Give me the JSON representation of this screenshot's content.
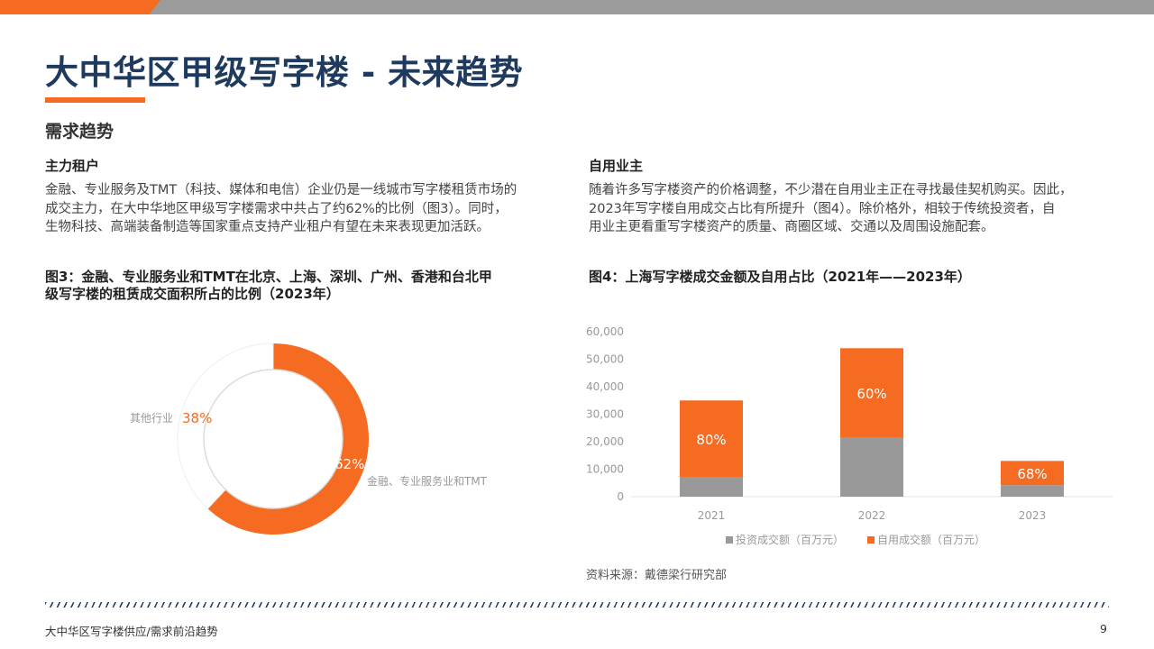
{
  "page": {
    "title": "大中华区甲级写字楼 - 未来趋势",
    "section_title": "需求趋势",
    "footer": "大中华区写字楼供应/需求前沿趋势",
    "page_number": "9",
    "source": "资料来源：戴德梁行研究部"
  },
  "left": {
    "heading": "主力租户",
    "lines": [
      "金融、专业服务及TMT（科技、媒体和电信）企业仍是一线城市写字楼租赁市场的",
      "成交主力，在大中华地区甲级写字楼需求中共占了约62%的比例（图3）。同时，",
      "生物科技、高端装备制造等国家重点支持产业租户有望在未来表现更加活跃。"
    ],
    "figure_title_lines": [
      "图3：金融、专业服务业和TMT在北京、上海、深圳、广州、香港和台北甲",
      "级写字楼的租赁成交面积所占的比例（2023年）"
    ]
  },
  "right": {
    "heading": "自用业主",
    "lines": [
      "随着许多写字楼资产的价格调整，不少潜在自用业主正在寻找最佳契机购买。因此，",
      "2023年写字楼自用成交占比有所提升（图4）。除价格外，相较于传统投资者，自",
      "用业主更看重写字楼资产的质量、商圈区域、交通以及周围设施配套。"
    ],
    "figure_title": "图4：上海写字楼成交金额及自用占比（2021年——2023年）"
  },
  "chart_data": [
    {
      "type": "pie",
      "donut": true,
      "slices": [
        {
          "label": "金融、专业服务业和TMT",
          "value": 62,
          "value_label": "62%",
          "color": "#f46b21"
        },
        {
          "label": "其他行业",
          "value": 38,
          "value_label": "38%",
          "color": "#ffffff"
        }
      ]
    },
    {
      "type": "bar",
      "stacked": true,
      "categories": [
        "2021",
        "2022",
        "2023"
      ],
      "series": [
        {
          "name": "投资成交额（百万元）",
          "values": [
            7000,
            21500,
            4200
          ],
          "color": "#999999"
        },
        {
          "name": "自用成交额（百万元）",
          "values": [
            28000,
            32500,
            8800
          ],
          "color": "#f46b21"
        }
      ],
      "data_labels": [
        "80%",
        "60%",
        "68%"
      ],
      "ylim": [
        0,
        60000
      ],
      "yticks": [
        "0",
        "10,000",
        "20,000",
        "30,000",
        "40,000",
        "50,000",
        "60,000"
      ],
      "legend": "bottom",
      "grid": false
    }
  ]
}
